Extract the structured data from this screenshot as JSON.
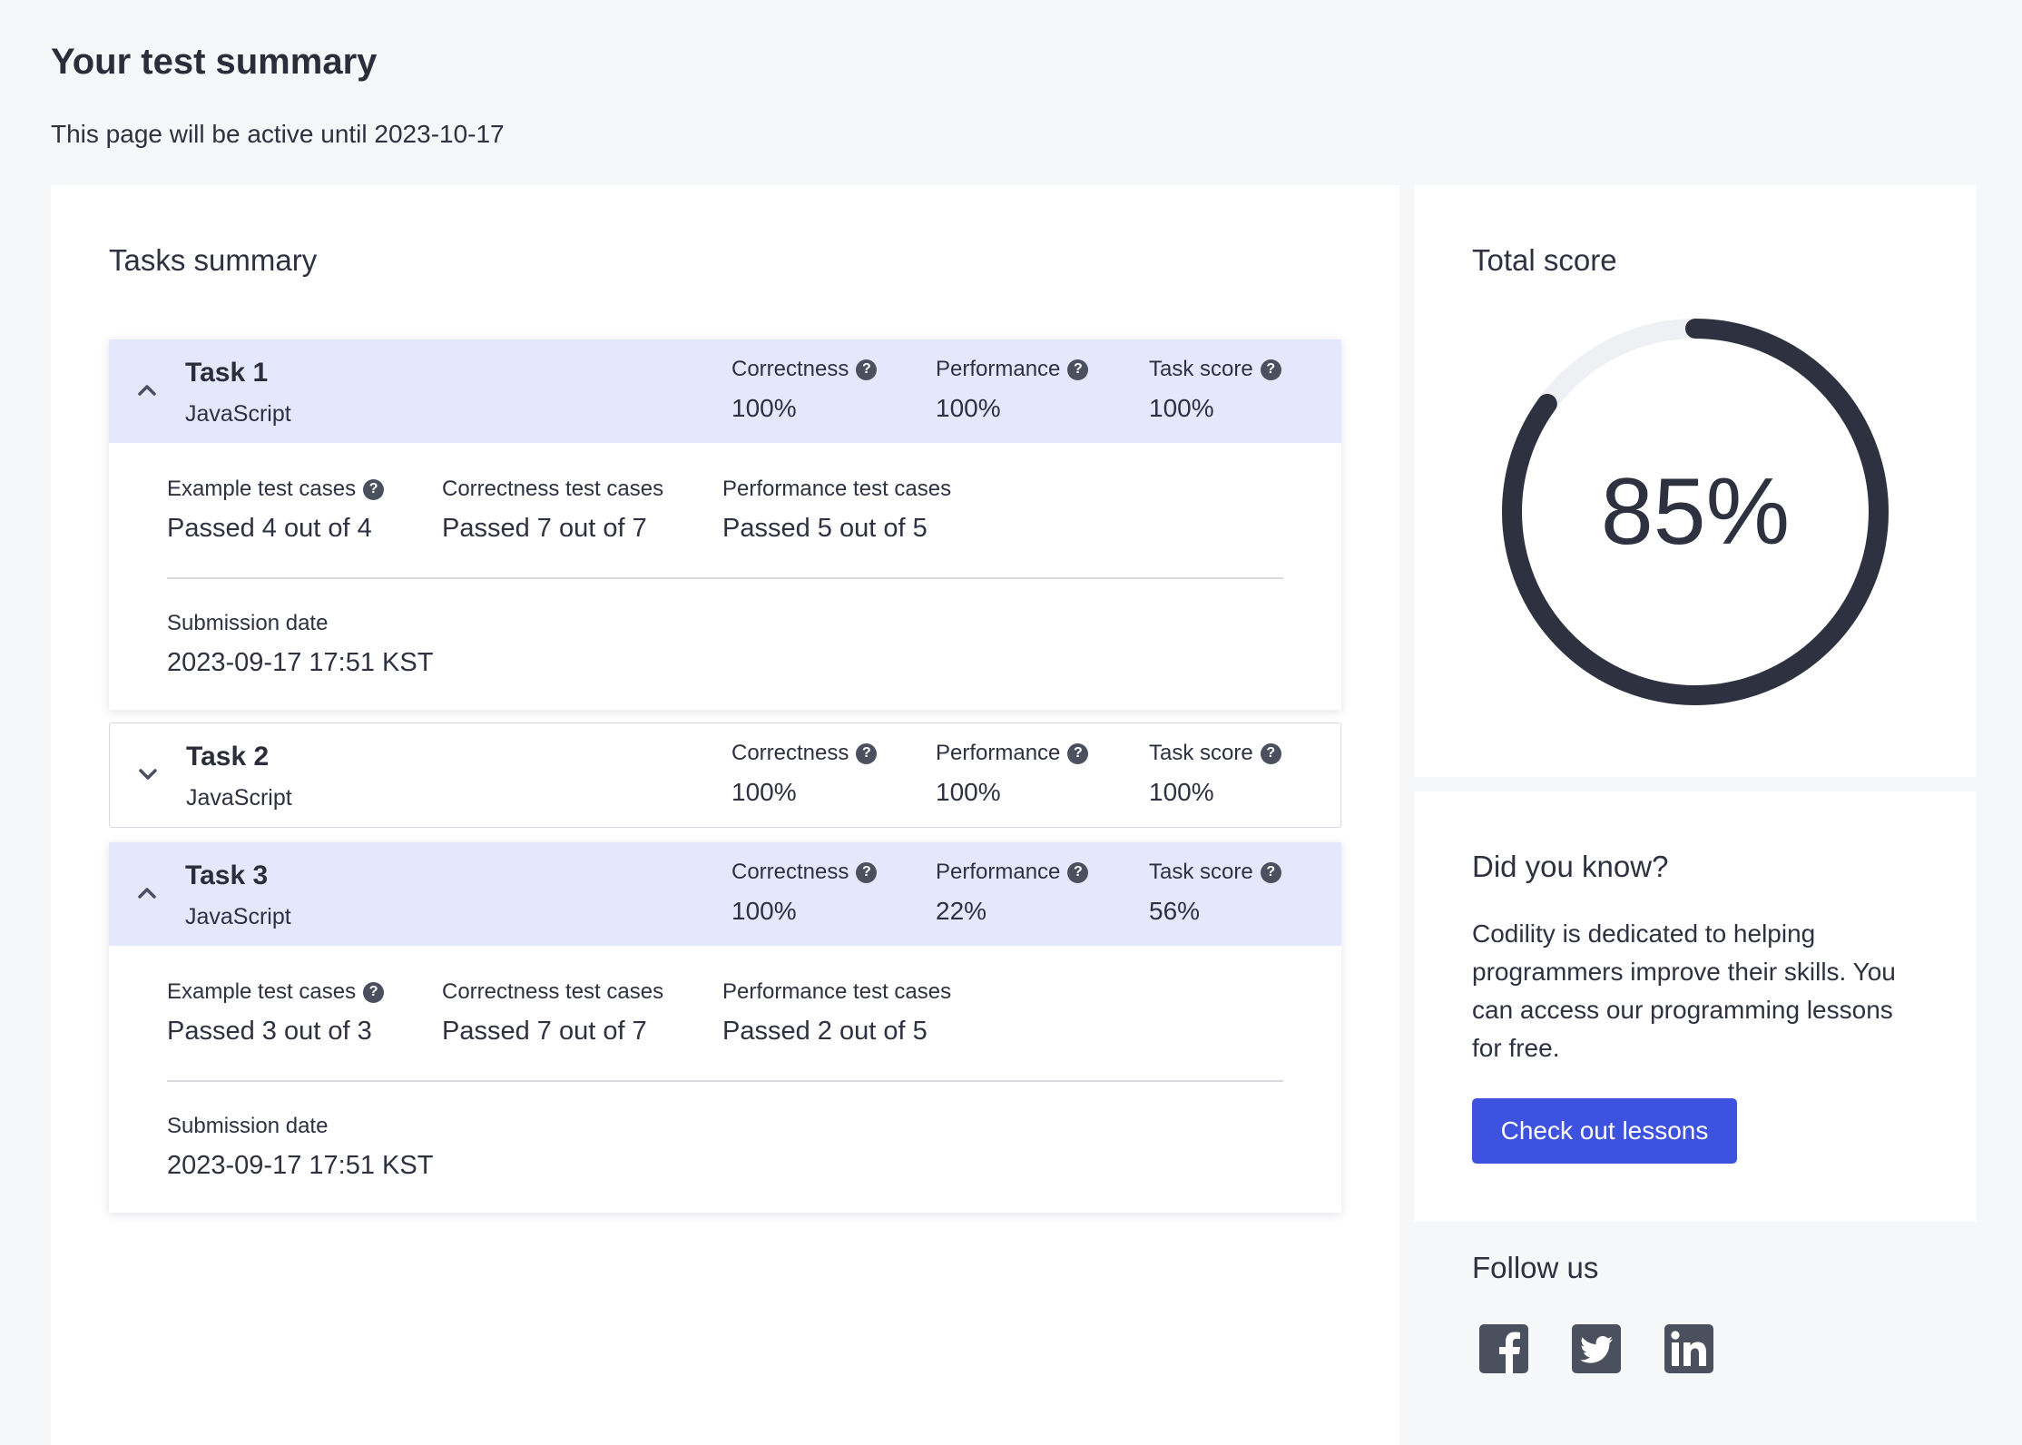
{
  "page": {
    "title": "Your test summary",
    "subtitle": "This page will be active until 2023-10-17"
  },
  "tasks_summary": {
    "title": "Tasks summary",
    "metric_labels": {
      "correctness": "Correctness",
      "performance": "Performance",
      "task_score": "Task score"
    },
    "case_labels": {
      "example": "Example test cases",
      "correctness": "Correctness test cases",
      "performance": "Performance test cases"
    },
    "submission_label": "Submission date",
    "help_glyph": "?",
    "tasks": [
      {
        "name": "Task 1",
        "language": "JavaScript",
        "expanded": true,
        "correctness": "100%",
        "performance": "100%",
        "task_score": "100%",
        "example_cases": "Passed 4 out of 4",
        "correctness_cases": "Passed 7 out of 7",
        "performance_cases": "Passed 5 out of 5",
        "submission_date": "2023-09-17 17:51 KST"
      },
      {
        "name": "Task 2",
        "language": "JavaScript",
        "expanded": false,
        "correctness": "100%",
        "performance": "100%",
        "task_score": "100%"
      },
      {
        "name": "Task 3",
        "language": "JavaScript",
        "expanded": true,
        "correctness": "100%",
        "performance": "22%",
        "task_score": "56%",
        "example_cases": "Passed 3 out of 3",
        "correctness_cases": "Passed 7 out of 7",
        "performance_cases": "Passed 2 out of 5",
        "submission_date": "2023-09-17 17:51 KST"
      }
    ]
  },
  "total_score": {
    "title": "Total score",
    "value_label": "85%",
    "fraction": 0.85
  },
  "did_you_know": {
    "title": "Did you know?",
    "text": "Codility is dedicated to helping programmers improve their skills. You can access our programming lessons for free.",
    "button_label": "Check out lessons"
  },
  "follow_us": {
    "title": "Follow us",
    "icons": [
      "facebook-icon",
      "twitter-icon",
      "linkedin-icon"
    ]
  },
  "colors": {
    "accent": "#3e52e0",
    "header_highlight": "#e4e8fd",
    "gauge_ring": "#2e3140",
    "gauge_track": "#eef0f3",
    "icon": "#4b505f"
  }
}
